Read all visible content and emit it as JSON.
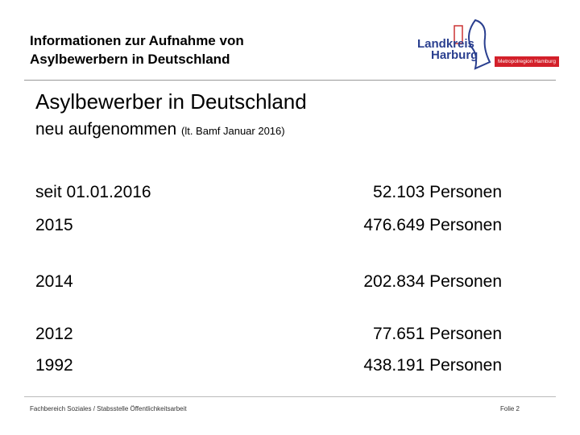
{
  "header": {
    "title_lines": [
      "Informationen zur Aufnahme von",
      "Asylbewerbern in  Deutschland"
    ],
    "logo": {
      "name_lines": [
        "Landkreis",
        "Harburg"
      ],
      "badge": "Metropolregion Hamburg"
    }
  },
  "title": "Asylbewerber in Deutschland",
  "subtitle": {
    "main": "neu aufgenommen",
    "note": "(lt. Bamf Januar 2016)"
  },
  "table": {
    "rows": [
      [
        "seit 01.01.2016",
        "52.103 Personen"
      ],
      [
        "2015",
        "476.649 Personen"
      ],
      [
        "2014",
        "202.834 Personen"
      ],
      [
        "2012",
        "77.651 Personen"
      ],
      [
        "1992",
        "438.191 Personen"
      ]
    ]
  },
  "footer": {
    "left": "Fachbereich Soziales / Stabsstelle Öffentlichkeitsarbeit",
    "right": "Folie 2"
  }
}
